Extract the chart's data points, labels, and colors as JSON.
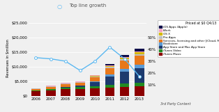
{
  "years": [
    "2006",
    "2007",
    "2008",
    "2009",
    "2010",
    "2011",
    "2012",
    "2013"
  ],
  "stacks": {
    "iTunes Music": [
      1800,
      2100,
      2500,
      2600,
      2800,
      3000,
      3200,
      3400
    ],
    "iTunes Video": [
      250,
      450,
      550,
      600,
      750,
      1000,
      1100,
      1200
    ],
    "App Store and Mac App Store": [
      0,
      0,
      200,
      500,
      1400,
      2800,
      4200,
      5000
    ],
    "iBookstore": [
      0,
      0,
      0,
      80,
      250,
      600,
      900,
      1100
    ],
    "Services, licensing and other": [
      400,
      600,
      800,
      900,
      1300,
      2200,
      2800,
      3300
    ],
    "Pro Apps": [
      180,
      280,
      320,
      260,
      320,
      450,
      450,
      450
    ],
    "OS X": [
      0,
      0,
      0,
      0,
      180,
      350,
      450,
      550
    ],
    "iWork": [
      80,
      160,
      200,
      120,
      180,
      260,
      270,
      350
    ],
    "iOS Apps (Apple)": [
      0,
      0,
      0,
      0,
      0,
      450,
      700,
      900
    ]
  },
  "stack_colors": {
    "iTunes Music": "#8B0000",
    "iTunes Video": "#228B22",
    "App Store and Mac App Store": "#1C3A6E",
    "iBookstore": "#5B9BD5",
    "Services, licensing and other": "#E8781A",
    "Pro Apps": "#C0C0C0",
    "OS X": "#D4B800",
    "iWork": "#F4A0C0",
    "iOS Apps (Apple)": "#0D0D4A"
  },
  "line_values": [
    0.33,
    0.32,
    0.3,
    0.22,
    0.3,
    0.42,
    0.32,
    0.17
  ],
  "line_color": "#5BB8F0",
  "title": "Top line growth",
  "ylabel": "Revenues in $million",
  "ylim_left": [
    0,
    26000
  ],
  "ylim_right": [
    0,
    0.65
  ],
  "yticks_left": [
    0,
    5000,
    10000,
    15000,
    20000,
    25000
  ],
  "ytick_labels_left": [
    "$0",
    "$5,000",
    "$10,000",
    "$15,000",
    "$20,000",
    "$25,000"
  ],
  "yticks_right": [
    0.1,
    0.2,
    0.3,
    0.4,
    0.5
  ],
  "ytick_labels_right": [
    "10%",
    "20%",
    "30%",
    "40%",
    "50%"
  ],
  "legend_title": "Priced at $0 Q4/13",
  "legend_items": [
    {
      "label": "iOS Apps (Apple)",
      "color": "#0D0D4A"
    },
    {
      "label": "iWork",
      "color": "#F4A0C0"
    },
    {
      "label": "OS X",
      "color": "#D4B800"
    },
    {
      "label": "Pro Apps",
      "color": "#C0C0C0"
    },
    {
      "label": "Services, licensing and other [iCloud, Match, AppleCare]",
      "color": "#E8781A"
    },
    {
      "label": "iBookstore",
      "color": "#5B9BD5"
    },
    {
      "label": "App Store and Mac App Store",
      "color": "#1C3A6E"
    },
    {
      "label": "iTunes Video",
      "color": "#228B22"
    },
    {
      "label": "iTunes Music",
      "color": "#8B0000"
    }
  ],
  "footer": "3rd Party Content",
  "background_color": "#F0F0F0"
}
